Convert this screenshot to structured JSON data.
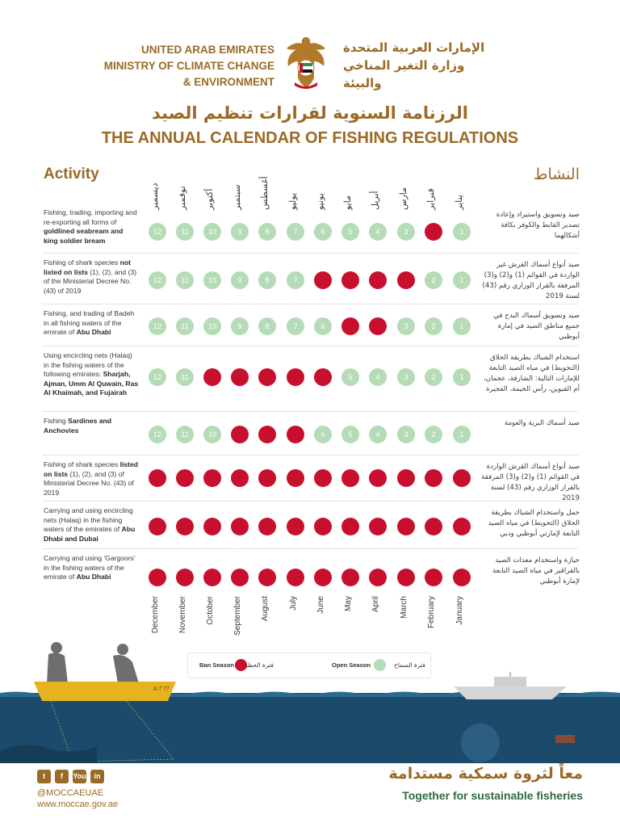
{
  "header": {
    "org_en": [
      "UNITED ARAB EMIRATES",
      "MINISTRY OF CLIMATE CHANGE",
      "& ENVIRONMENT"
    ],
    "org_ar": [
      "الإمارات العربية المتحدة",
      "وزارة التغير المناخي",
      "والبيئة"
    ],
    "title_ar": "الرزنامة السنوية لقرارات تنظيم الصيد",
    "title_en": "THE ANNUAL CALENDAR OF FISHING REGULATIONS"
  },
  "columns": {
    "activity_en": "Activity",
    "activity_ar": "النشاط"
  },
  "months_en": [
    "December",
    "November",
    "October",
    "September",
    "August",
    "July",
    "June",
    "May",
    "April",
    "March",
    "February",
    "January"
  ],
  "months_ar": [
    "ديسمبر",
    "نوفمبر",
    "أكتوبر",
    "سبتمبر",
    "أغسطس",
    "يوليو",
    "يونيو",
    "مايو",
    "أبريل",
    "مارس",
    "فبراير",
    "يناير"
  ],
  "rows": [
    {
      "desc_en_html": "Fishing, trading, importing and re-exporting all forms of <b>goldlined seabream and king soldier bream</b>",
      "desc_ar": "صيد وتسويق واستيراد وإعادة تصدير القابط والكوفر بكافة أشكالهما",
      "status": [
        "o",
        "o",
        "o",
        "o",
        "o",
        "o",
        "o",
        "o",
        "o",
        "o",
        "b",
        "o"
      ]
    },
    {
      "desc_en_html": "Fishing of shark species <b>not listed on lists</b> (1), (2), and (3) of the Ministerial Decree No. (43) of 2019",
      "desc_ar": "صيد أنواع أسماك القرش غير الواردة في القوائم (1) و(2) و(3) المرفقة بالقرار الوزاري رقم (43) لسنة 2019",
      "status": [
        "o",
        "o",
        "o",
        "o",
        "o",
        "o",
        "b",
        "b",
        "b",
        "b",
        "o",
        "o"
      ]
    },
    {
      "desc_en_html": "Fishing, and trading of Badeh in all fishing waters of the emirate of <b>Abu Dhabi</b>",
      "desc_ar": "صيد وتسويق أسماك البدح في جميع مناطق الصيد في إمارة أبوظبي",
      "status": [
        "o",
        "o",
        "o",
        "o",
        "o",
        "o",
        "o",
        "b",
        "b",
        "o",
        "o",
        "o"
      ]
    },
    {
      "desc_en_html": "Using encircling nets (Halaq) in the fishing waters of the following emirates: <b>Sharjah, Ajman, Umm Al Quwain, Ras Al Khaimah, and Fujairah</b>",
      "desc_ar": "استخدام الشباك بطريقة الحلاق (التحويط) في مياه الصيد التابعة للإمارات التالية: الشارقة، عجمان، أم القيوين، رأس الخيمة، الفجيرة",
      "status": [
        "o",
        "o",
        "b",
        "b",
        "b",
        "b",
        "b",
        "o",
        "o",
        "o",
        "o",
        "o"
      ]
    },
    {
      "desc_en_html": "Fishing <b>Sardines and Anchovies</b>",
      "desc_ar": "صيد أسماك البرية والعومة",
      "status": [
        "o",
        "o",
        "o",
        "b",
        "b",
        "b",
        "o",
        "o",
        "o",
        "o",
        "o",
        "o"
      ]
    },
    {
      "desc_en_html": "Fishing of shark species <b>listed on lists</b> (1), (2), and (3) of Ministerial Decree No. (43) of 2019",
      "desc_ar": "صيد أنواع أسماك القرش الواردة في القوائم (1) و(2) و(3) المرفقة بالقرار الوزاري رقم (43) لسنة 2019",
      "status": [
        "b",
        "b",
        "b",
        "b",
        "b",
        "b",
        "b",
        "b",
        "b",
        "b",
        "b",
        "b"
      ]
    },
    {
      "desc_en_html": "Carrying and using encircling nets (Halaq) in the fishing waters of the emirates of <b>Abu Dhabi and Dubai</b>",
      "desc_ar": "حمل واستخدام الشباك بطريقة الحلاق (التحويط) في مياه الصيد التابعة لإمارتي أبوظبي ودبي",
      "status": [
        "b",
        "b",
        "b",
        "b",
        "b",
        "b",
        "b",
        "b",
        "b",
        "b",
        "b",
        "b"
      ]
    },
    {
      "desc_en_html": "Carrying and using 'Gargoors' in the fishing waters of the emirate of <b>Abu Dhabi</b>",
      "desc_ar": "حيازة واستخدام معدات الصيد بالقراقير في مياه الصيد التابعة لإمارة أبوظبي",
      "status": [
        "b",
        "b",
        "b",
        "b",
        "b",
        "b",
        "b",
        "b",
        "b",
        "b",
        "b",
        "b"
      ]
    }
  ],
  "month_numbers": [
    "12",
    "11",
    "10",
    "9",
    "8",
    "7",
    "6",
    "5",
    "4",
    "3",
    "2",
    "1"
  ],
  "legend": {
    "ban_en": "Ban Season",
    "ban_ar": "فترة الحظر",
    "open_en": "Open Season",
    "open_ar": "فترة السماح",
    "ban_color": "#c8102e",
    "open_color": "#b5dcb6"
  },
  "boat_tag": "A 7 77",
  "footer": {
    "social_icons": [
      "twitter-icon",
      "facebook-icon",
      "youtube-icon",
      "linkedin-icon"
    ],
    "social_glyphs": [
      "t",
      "f",
      "You",
      "in"
    ],
    "handle": "@MOCCAEUAE",
    "website": "www.moccae.gov.ae",
    "slogan_ar": "معاً لثروة سمكية مستدامة",
    "slogan_en": "Together for sustainable fisheries"
  }
}
